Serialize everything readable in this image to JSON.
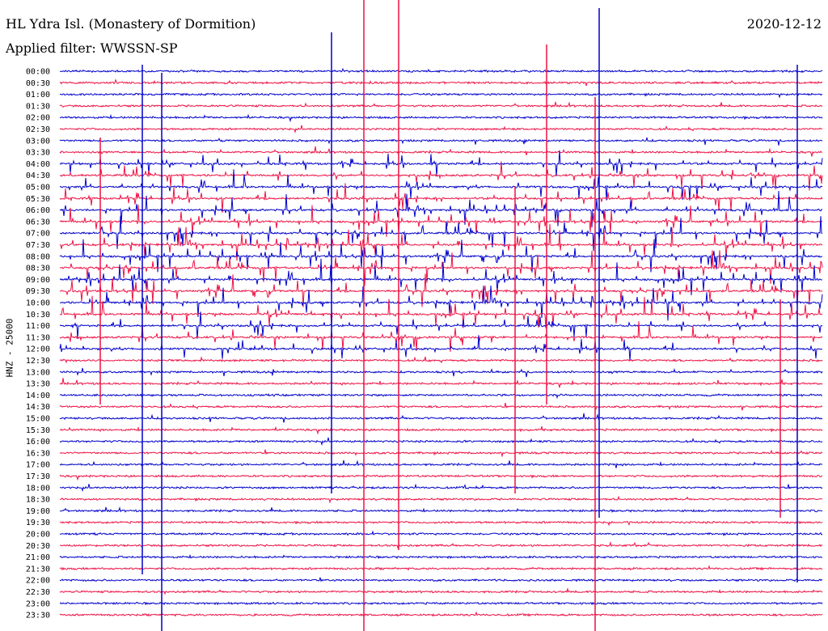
{
  "header": {
    "title": "HL Ydra Isl. (Monastery of Dormition)",
    "date": "2020-12-12",
    "filter": "Applied filter: WWSSN-SP"
  },
  "chart_data": {
    "type": "line",
    "title": "HL Ydra Isl. (Monastery of Dormition)",
    "ylabel": "HNZ - 25000",
    "row_labels": [
      "00:00",
      "00:30",
      "01:00",
      "01:30",
      "02:00",
      "02:30",
      "03:00",
      "03:30",
      "04:00",
      "04:30",
      "05:00",
      "05:30",
      "06:00",
      "06:30",
      "07:00",
      "07:30",
      "08:00",
      "08:30",
      "09:00",
      "09:30",
      "10:00",
      "10:30",
      "11:00",
      "11:30",
      "12:00",
      "12:30",
      "13:00",
      "13:30",
      "14:00",
      "14:30",
      "15:00",
      "15:30",
      "16:00",
      "16:30",
      "17:00",
      "17:30",
      "18:00",
      "18:30",
      "19:00",
      "19:30",
      "20:00",
      "20:30",
      "21:00",
      "21:30",
      "22:00",
      "22:30",
      "23:00",
      "23:30"
    ],
    "series_colors": [
      "#0000cc",
      "#ee1144"
    ],
    "grid": false,
    "trace_activity": [
      0.1,
      0.15,
      0.2,
      0.25,
      0.3,
      0.35,
      0.5,
      0.55,
      0.7,
      0.75,
      0.8,
      0.85,
      0.9,
      0.95,
      1.0,
      1.0,
      1.0,
      1.0,
      1.0,
      1.0,
      0.95,
      0.85,
      0.75,
      0.7,
      0.65,
      0.6,
      0.55,
      0.5,
      0.45,
      0.45,
      0.4,
      0.35,
      0.35,
      0.3,
      0.3,
      0.3,
      0.3,
      0.25,
      0.2,
      0.2,
      0.15,
      0.15,
      0.15,
      0.1,
      0.1,
      0.1,
      0.1,
      0.1
    ]
  }
}
